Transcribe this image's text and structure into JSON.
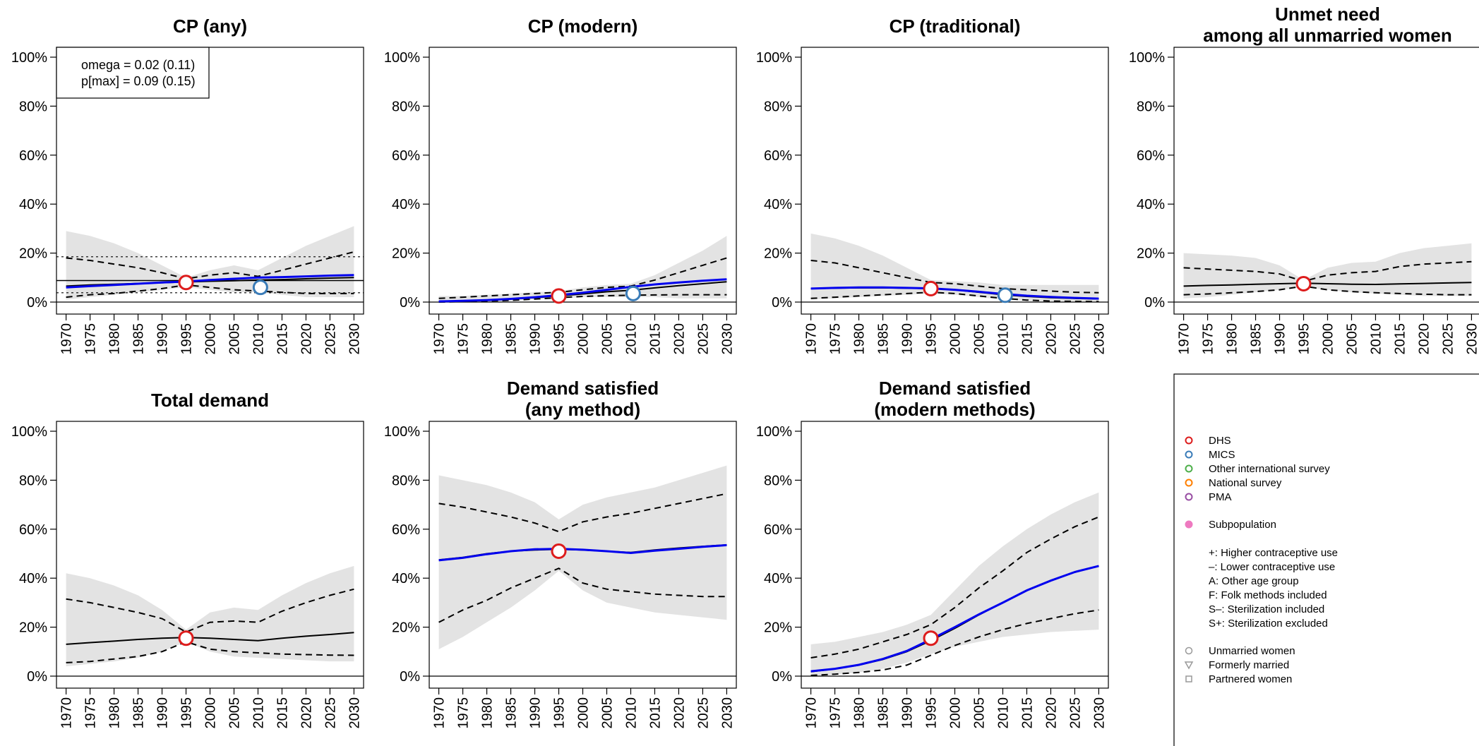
{
  "colors": {
    "band": "#e3e3e3",
    "median": "#000000",
    "blue_line": "#0000ee",
    "dhs": "#dd1c1c",
    "mics": "#3a7cb8",
    "other_intl": "#4daf4a",
    "national": "#ff7f00",
    "pma": "#984ea3",
    "subpop": "#ee7ac0",
    "grey_marker": "#999999"
  },
  "chart_data": [
    {
      "type": "line",
      "title": "CP (any)",
      "x": [
        1970,
        1975,
        1980,
        1985,
        1990,
        1995,
        2000,
        2005,
        2010,
        2015,
        2020,
        2025,
        2030
      ],
      "x_ticks": [
        "1970",
        "1975",
        "1980",
        "1985",
        "1990",
        "1995",
        "2000",
        "2005",
        "2010",
        "2015",
        "2020",
        "2025",
        "2030"
      ],
      "y_ticks": [
        "0%",
        "20%",
        "40%",
        "60%",
        "80%",
        "100%"
      ],
      "ylim": [
        0,
        100
      ],
      "band": {
        "lower": [
          1,
          2,
          3,
          4,
          5,
          6,
          5,
          4,
          4,
          3,
          2,
          2,
          2
        ],
        "upper": [
          29,
          27,
          24,
          20,
          15,
          10,
          13,
          15,
          13,
          18,
          23,
          27,
          31
        ]
      },
      "series": [
        {
          "values": [
            6.5,
            7,
            7.3,
            7.6,
            7.9,
            8.2,
            8.5,
            8.7,
            9,
            9.2,
            9.5,
            9.8,
            10
          ],
          "style": "solid",
          "color": "median",
          "width": 2
        },
        {
          "values": [
            18,
            17,
            15.5,
            14,
            12,
            9.5,
            11,
            12,
            10.5,
            13,
            15.5,
            18,
            20.5
          ],
          "style": "dashed",
          "color": "median",
          "width": 2
        },
        {
          "values": [
            2,
            3,
            3.5,
            4.5,
            5.5,
            7,
            6,
            5,
            4.5,
            4,
            3.5,
            3.5,
            3.5
          ],
          "style": "dashed",
          "color": "median",
          "width": 2
        },
        {
          "values": [
            6,
            6.5,
            7,
            7.5,
            8,
            8.4,
            9,
            9.5,
            10,
            10.2,
            10.5,
            10.8,
            11
          ],
          "style": "solid",
          "color": "blue_line",
          "width": 3
        }
      ],
      "hlines": [
        {
          "y": 18.5,
          "style": "dotted"
        },
        {
          "y": 8.8,
          "style": "solid"
        },
        {
          "y": 3.8,
          "style": "dotted"
        }
      ],
      "points": [
        {
          "x": 1995,
          "y": 8,
          "source": "dhs"
        },
        {
          "x": 2010.5,
          "y": 6,
          "source": "mics"
        }
      ],
      "info_box": [
        "omega = 0.02 (0.11)",
        "p[max] = 0.09 (0.15)"
      ]
    },
    {
      "type": "line",
      "title": "CP (modern)",
      "x": [
        1970,
        1975,
        1980,
        1985,
        1990,
        1995,
        2000,
        2005,
        2010,
        2015,
        2020,
        2025,
        2030
      ],
      "x_ticks": [
        "1970",
        "1975",
        "1980",
        "1985",
        "1990",
        "1995",
        "2000",
        "2005",
        "2010",
        "2015",
        "2020",
        "2025",
        "2030"
      ],
      "y_ticks": [
        "0%",
        "20%",
        "40%",
        "60%",
        "80%",
        "100%"
      ],
      "ylim": [
        0,
        100
      ],
      "band": {
        "lower": [
          0,
          0,
          0,
          0.5,
          1,
          1.5,
          2,
          2,
          2,
          2,
          1.5,
          1.5,
          1.5
        ],
        "upper": [
          2.5,
          2.5,
          3,
          3.5,
          4,
          4.5,
          6,
          7,
          7.5,
          11,
          16,
          21,
          27
        ]
      },
      "series": [
        {
          "values": [
            0.3,
            0.5,
            0.8,
            1.3,
            1.8,
            2.5,
            3.3,
            4.2,
            4.8,
            5.8,
            6.7,
            7.5,
            8.3
          ],
          "style": "solid",
          "color": "median",
          "width": 2
        },
        {
          "values": [
            1.5,
            2,
            2.5,
            3,
            3.5,
            4,
            5,
            6,
            6.5,
            9,
            12,
            15,
            18
          ],
          "style": "dashed",
          "color": "median",
          "width": 2
        },
        {
          "values": [
            0,
            0.2,
            0.4,
            0.7,
            1.2,
            1.8,
            2.3,
            2.6,
            2.8,
            2.9,
            3,
            3,
            3
          ],
          "style": "dashed",
          "color": "median",
          "width": 2
        },
        {
          "values": [
            0.3,
            0.5,
            0.8,
            1.3,
            2,
            2.8,
            3.8,
            5,
            6.2,
            7.2,
            8,
            8.7,
            9.3
          ],
          "style": "solid",
          "color": "blue_line",
          "width": 3
        }
      ],
      "hlines": [],
      "points": [
        {
          "x": 1995,
          "y": 2.5,
          "source": "dhs"
        },
        {
          "x": 2010.5,
          "y": 3.5,
          "source": "mics"
        }
      ]
    },
    {
      "type": "line",
      "title": "CP (traditional)",
      "x": [
        1970,
        1975,
        1980,
        1985,
        1990,
        1995,
        2000,
        2005,
        2010,
        2015,
        2020,
        2025,
        2030
      ],
      "x_ticks": [
        "1970",
        "1975",
        "1980",
        "1985",
        "1990",
        "1995",
        "2000",
        "2005",
        "2010",
        "2015",
        "2020",
        "2025",
        "2030"
      ],
      "y_ticks": [
        "0%",
        "20%",
        "40%",
        "60%",
        "80%",
        "100%"
      ],
      "ylim": [
        0,
        100
      ],
      "band": {
        "lower": [
          1,
          1.5,
          2,
          2.5,
          3,
          3.5,
          3,
          2,
          1,
          0.5,
          0.3,
          0.3,
          0.3
        ],
        "upper": [
          28,
          26,
          23,
          19,
          14,
          9,
          8.5,
          8,
          7,
          7,
          7,
          7,
          7
        ]
      },
      "series": [
        {
          "values": [
            5.5,
            5.7,
            5.8,
            5.8,
            5.7,
            5.5,
            5,
            4,
            3,
            2.3,
            1.8,
            1.5,
            1.3
          ],
          "style": "solid",
          "color": "median",
          "width": 2
        },
        {
          "values": [
            17,
            16,
            14,
            12,
            10,
            8,
            7.5,
            6.5,
            5.5,
            5,
            4.5,
            4,
            3.8
          ],
          "style": "dashed",
          "color": "median",
          "width": 2
        },
        {
          "values": [
            1.5,
            2,
            2.5,
            3,
            3.5,
            4,
            3.5,
            2.5,
            1.5,
            0.8,
            0.4,
            0.3,
            0.2
          ],
          "style": "dashed",
          "color": "median",
          "width": 2
        },
        {
          "values": [
            5.5,
            5.8,
            6,
            6,
            5.8,
            5.6,
            5,
            4.2,
            3.3,
            2.6,
            2.1,
            1.7,
            1.4
          ],
          "style": "solid",
          "color": "blue_line",
          "width": 3
        }
      ],
      "hlines": [],
      "points": [
        {
          "x": 1995,
          "y": 5.5,
          "source": "dhs"
        },
        {
          "x": 2010.5,
          "y": 2.8,
          "source": "mics"
        }
      ]
    },
    {
      "type": "line",
      "title": "Unmet need\namong all unmarried women",
      "x": [
        1970,
        1975,
        1980,
        1985,
        1990,
        1995,
        2000,
        2005,
        2010,
        2015,
        2020,
        2025,
        2030
      ],
      "x_ticks": [
        "1970",
        "1975",
        "1980",
        "1985",
        "1990",
        "1995",
        "2000",
        "2005",
        "2010",
        "2015",
        "2020",
        "2025",
        "2030"
      ],
      "y_ticks": [
        "0%",
        "20%",
        "40%",
        "60%",
        "80%",
        "100%"
      ],
      "ylim": [
        0,
        100
      ],
      "band": {
        "lower": [
          1.5,
          2,
          3,
          4,
          5,
          6,
          5,
          4,
          3.5,
          3,
          2.5,
          2.5,
          2.5
        ],
        "upper": [
          20,
          19.5,
          19,
          18,
          15,
          9,
          14,
          16,
          16.5,
          20,
          22,
          23,
          24
        ]
      },
      "series": [
        {
          "values": [
            6.5,
            6.8,
            7,
            7.3,
            7.5,
            7.7,
            7.5,
            7.3,
            7.2,
            7.4,
            7.6,
            7.8,
            8
          ],
          "style": "solid",
          "color": "median",
          "width": 2
        },
        {
          "values": [
            14,
            13.5,
            13,
            12.5,
            11.5,
            8.5,
            11,
            12,
            12.5,
            14.5,
            15.5,
            16,
            16.5
          ],
          "style": "dashed",
          "color": "median",
          "width": 2
        },
        {
          "values": [
            3,
            3.3,
            3.8,
            4.3,
            5,
            6.5,
            5,
            4.3,
            3.8,
            3.5,
            3.2,
            3,
            3
          ],
          "style": "dashed",
          "color": "median",
          "width": 2
        }
      ],
      "hlines": [],
      "points": [
        {
          "x": 1995,
          "y": 7.5,
          "source": "dhs"
        }
      ]
    },
    {
      "type": "line",
      "title": "Total demand",
      "x": [
        1970,
        1975,
        1980,
        1985,
        1990,
        1995,
        2000,
        2005,
        2010,
        2015,
        2020,
        2025,
        2030
      ],
      "x_ticks": [
        "1970",
        "1975",
        "1980",
        "1985",
        "1990",
        "1995",
        "2000",
        "2005",
        "2010",
        "2015",
        "2020",
        "2025",
        "2030"
      ],
      "y_ticks": [
        "0%",
        "20%",
        "40%",
        "60%",
        "80%",
        "100%"
      ],
      "ylim": [
        0,
        100
      ],
      "band": {
        "lower": [
          4,
          5,
          6,
          7.5,
          10,
          14,
          10,
          8,
          7.5,
          7,
          6.5,
          6,
          6
        ],
        "upper": [
          42,
          40,
          37,
          33,
          27,
          19,
          26,
          28,
          27,
          33,
          38,
          42,
          45
        ]
      },
      "series": [
        {
          "values": [
            13,
            13.7,
            14.3,
            15,
            15.5,
            15.8,
            15.5,
            15,
            14.5,
            15.5,
            16.3,
            17,
            17.8
          ],
          "style": "solid",
          "color": "median",
          "width": 2
        },
        {
          "values": [
            31.5,
            30,
            28,
            26,
            23.5,
            18,
            22,
            22.5,
            22,
            26.5,
            30,
            33,
            35.5
          ],
          "style": "dashed",
          "color": "median",
          "width": 2
        },
        {
          "values": [
            5.5,
            6,
            7,
            8,
            10,
            14,
            11,
            10,
            9.5,
            9,
            8.8,
            8.6,
            8.5
          ],
          "style": "dashed",
          "color": "median",
          "width": 2
        }
      ],
      "hlines": [],
      "points": [
        {
          "x": 1995,
          "y": 15.5,
          "source": "dhs"
        }
      ]
    },
    {
      "type": "line",
      "title": "Demand satisfied\n(any method)",
      "x": [
        1970,
        1975,
        1980,
        1985,
        1990,
        1995,
        2000,
        2005,
        2010,
        2015,
        2020,
        2025,
        2030
      ],
      "x_ticks": [
        "1970",
        "1975",
        "1980",
        "1985",
        "1990",
        "1995",
        "2000",
        "2005",
        "2010",
        "2015",
        "2020",
        "2025",
        "2030"
      ],
      "y_ticks": [
        "0%",
        "20%",
        "40%",
        "60%",
        "80%",
        "100%"
      ],
      "ylim": [
        0,
        100
      ],
      "band": {
        "lower": [
          11,
          16,
          22,
          28,
          35,
          43,
          35,
          30,
          28,
          26,
          25,
          24,
          23
        ],
        "upper": [
          82,
          80,
          78,
          75,
          71,
          64,
          70,
          73,
          75,
          77,
          80,
          83,
          86
        ]
      },
      "series": [
        {
          "values": [
            47.5,
            48.5,
            50,
            51,
            51.5,
            51.8,
            51.5,
            51,
            50.5,
            51.5,
            52.3,
            53,
            53.6
          ],
          "style": "solid",
          "color": "median",
          "width": 2
        },
        {
          "values": [
            70.5,
            69,
            67,
            65,
            62.5,
            59,
            63,
            65,
            66.5,
            68.5,
            70.5,
            72.5,
            74.5
          ],
          "style": "dashed",
          "color": "median",
          "width": 2
        },
        {
          "values": [
            22,
            27,
            31,
            36,
            40,
            44,
            38,
            35.5,
            34.5,
            33.5,
            33,
            32.5,
            32.5
          ],
          "style": "dashed",
          "color": "median",
          "width": 2
        },
        {
          "values": [
            47.3,
            48.3,
            49.8,
            51,
            51.8,
            52,
            51.6,
            51,
            50.3,
            51.2,
            52,
            52.8,
            53.5
          ],
          "style": "solid",
          "color": "blue_line",
          "width": 3
        }
      ],
      "hlines": [],
      "points": [
        {
          "x": 1995,
          "y": 51,
          "source": "dhs"
        }
      ]
    },
    {
      "type": "line",
      "title": "Demand satisfied\n(modern methods)",
      "x": [
        1970,
        1975,
        1980,
        1985,
        1990,
        1995,
        2000,
        2005,
        2010,
        2015,
        2020,
        2025,
        2030
      ],
      "x_ticks": [
        "1970",
        "1975",
        "1980",
        "1985",
        "1990",
        "1995",
        "2000",
        "2005",
        "2010",
        "2015",
        "2020",
        "2025",
        "2030"
      ],
      "y_ticks": [
        "0%",
        "20%",
        "40%",
        "60%",
        "80%",
        "100%"
      ],
      "ylim": [
        0,
        100
      ],
      "band": {
        "lower": [
          0,
          0.5,
          1.5,
          3,
          5.5,
          9,
          12,
          14,
          16,
          17,
          18,
          18.5,
          19
        ],
        "upper": [
          13,
          14,
          16,
          18,
          21,
          25,
          35,
          45,
          53,
          60,
          66,
          71,
          75
        ]
      },
      "series": [
        {
          "values": [
            1.8,
            3,
            4.5,
            6.8,
            10,
            14.5,
            19.5,
            25,
            30,
            35,
            39,
            42.5,
            45
          ],
          "style": "solid",
          "color": "median",
          "width": 2
        },
        {
          "values": [
            7.5,
            9,
            11,
            14,
            17,
            21,
            28,
            36,
            43,
            50.5,
            56,
            61,
            65
          ],
          "style": "dashed",
          "color": "median",
          "width": 2
        },
        {
          "values": [
            0.3,
            0.8,
            1.5,
            2.5,
            4.5,
            8.5,
            12.5,
            16,
            19,
            21.5,
            23.5,
            25.5,
            27
          ],
          "style": "dashed",
          "color": "median",
          "width": 2
        },
        {
          "values": [
            2,
            3,
            4.6,
            7,
            10.3,
            15,
            20,
            25.2,
            30,
            35,
            39,
            42.5,
            45
          ],
          "style": "solid",
          "color": "blue_line",
          "width": 3
        }
      ],
      "hlines": [],
      "points": [
        {
          "x": 1995,
          "y": 15.5,
          "source": "dhs"
        }
      ]
    }
  ],
  "legend": {
    "sources": [
      {
        "label": "DHS",
        "color": "dhs"
      },
      {
        "label": "MICS",
        "color": "mics"
      },
      {
        "label": "Other international survey",
        "color": "other_intl"
      },
      {
        "label": "National survey",
        "color": "national"
      },
      {
        "label": "PMA",
        "color": "pma"
      }
    ],
    "subpopulation": "Subpopulation",
    "notes": [
      "+:  Higher contraceptive use",
      "–:  Lower contraceptive use",
      "A:  Other age group",
      "F:  Folk methods included",
      "S–: Sterilization included",
      "S+: Sterilization excluded"
    ],
    "shapes": [
      {
        "label": "Unmarried women",
        "shape": "circle"
      },
      {
        "label": "Formerly married",
        "shape": "triangle"
      },
      {
        "label": "Partnered women",
        "shape": "square"
      }
    ]
  }
}
